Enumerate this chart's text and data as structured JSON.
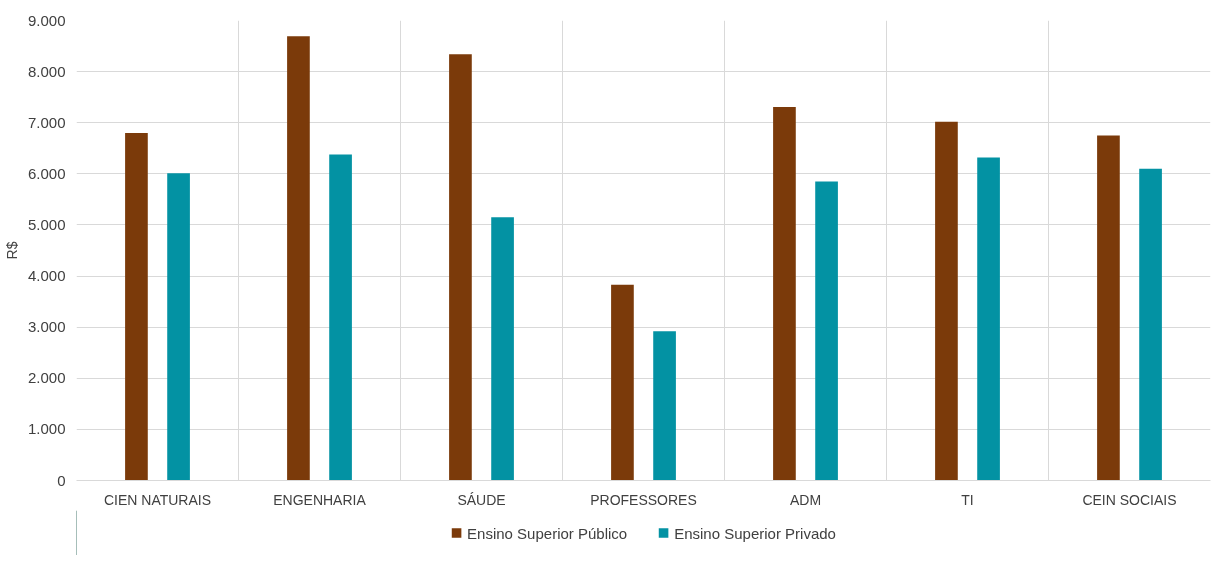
{
  "chart_data": {
    "type": "bar",
    "ylabel": "R$",
    "categories": [
      "CIEN NATURAIS",
      "ENGENHARIA",
      "SÁUDE",
      "PROFESSORES",
      "ADM",
      "TI",
      "CEIN SOCIAIS"
    ],
    "series": [
      {
        "name": "Ensino Superior Público",
        "color": "#7b3a0a",
        "values": [
          6800,
          8690,
          8340,
          3830,
          7310,
          7020,
          6750
        ]
      },
      {
        "name": "Ensino Superior Privado",
        "color": "#0392a3",
        "values": [
          6010,
          6380,
          5150,
          2920,
          5850,
          6320,
          6100
        ]
      }
    ],
    "ylim": [
      0,
      9000
    ],
    "yticks": [
      0,
      {
        "value": 1000,
        "label": "1.000"
      },
      {
        "value": 2000,
        "label": "2.000"
      },
      {
        "value": 3000,
        "label": "3.000"
      },
      {
        "value": 4000,
        "label": "4.000"
      },
      {
        "value": 5000,
        "label": "5.000"
      },
      {
        "value": 6000,
        "label": "6.000"
      },
      {
        "value": 7000,
        "label": "7.000"
      },
      {
        "value": 8000,
        "label": "8.000"
      },
      {
        "value": 9000,
        "label": "9.000"
      }
    ],
    "grid": true,
    "legend": "bottom"
  }
}
